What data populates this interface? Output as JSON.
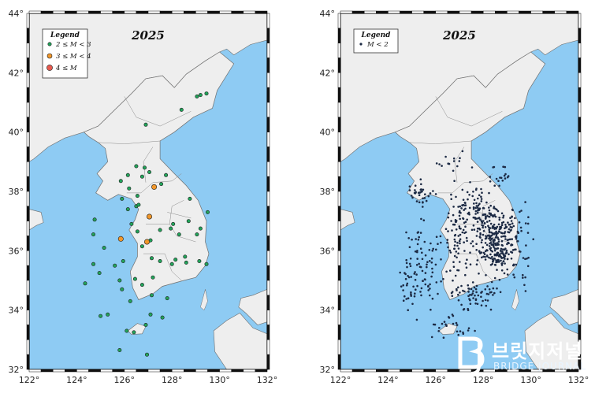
{
  "colors": {
    "sea": "#8ecbf3",
    "land": "#eeeeee",
    "border": "#8a8a8a",
    "minor": "#22a35a",
    "moderate": "#f0962a",
    "strong": "#e65a4f",
    "micro": "#1c2a44"
  },
  "axes": {
    "x_ticks": [
      "122°",
      "124°",
      "126°",
      "128°",
      "130°",
      "132°"
    ],
    "y_ticks": [
      "32°",
      "34°",
      "36°",
      "38°",
      "40°",
      "42°",
      "44°"
    ]
  },
  "maps": [
    {
      "title": "2025",
      "legend": {
        "title": "Legend",
        "entries": [
          {
            "label": "2 ≤ M < 3",
            "color": "minor",
            "symbol": "small-circle"
          },
          {
            "label": "3 ≤ M < 4",
            "color": "moderate",
            "symbol": "medium-circle"
          },
          {
            "label": "4 ≤ M",
            "color": "strong",
            "symbol": "large-circle"
          }
        ]
      }
    },
    {
      "title": "2025",
      "legend": {
        "title": "Legend",
        "entries": [
          {
            "label": "M < 2",
            "color": "micro",
            "symbol": "dot"
          }
        ]
      }
    }
  ],
  "chart_data": [
    {
      "type": "scatter",
      "title": "2025",
      "xlim": [
        122,
        132
      ],
      "ylim": [
        32,
        44
      ],
      "series": [
        {
          "name": "2 ≤ M < 3",
          "color": "minor",
          "points": [
            [
              129.2,
              41.25
            ],
            [
              129.45,
              41.3
            ],
            [
              129.05,
              41.2
            ],
            [
              128.4,
              40.75
            ],
            [
              126.9,
              40.25
            ],
            [
              126.5,
              38.85
            ],
            [
              126.85,
              38.8
            ],
            [
              127.05,
              38.65
            ],
            [
              126.15,
              38.55
            ],
            [
              126.75,
              38.5
            ],
            [
              127.75,
              38.55
            ],
            [
              125.85,
              38.35
            ],
            [
              126.2,
              38.1
            ],
            [
              126.55,
              37.85
            ],
            [
              125.9,
              37.75
            ],
            [
              126.5,
              37.5
            ],
            [
              126.15,
              37.4
            ],
            [
              126.6,
              37.55
            ],
            [
              127.55,
              38.25
            ],
            [
              128.75,
              37.75
            ],
            [
              129.5,
              37.3
            ],
            [
              128.05,
              36.9
            ],
            [
              128.7,
              37.0
            ],
            [
              129.2,
              36.75
            ],
            [
              129.05,
              36.55
            ],
            [
              127.95,
              36.75
            ],
            [
              127.5,
              36.7
            ],
            [
              126.55,
              36.65
            ],
            [
              127.1,
              36.35
            ],
            [
              126.3,
              36.9
            ],
            [
              126.75,
              36.15
            ],
            [
              124.75,
              37.05
            ],
            [
              124.7,
              36.55
            ],
            [
              125.15,
              36.1
            ],
            [
              125.95,
              35.65
            ],
            [
              127.15,
              35.75
            ],
            [
              127.5,
              35.65
            ],
            [
              128.0,
              35.55
            ],
            [
              128.15,
              35.7
            ],
            [
              128.6,
              35.6
            ],
            [
              129.15,
              35.65
            ],
            [
              129.45,
              35.55
            ],
            [
              128.55,
              35.8
            ],
            [
              127.2,
              35.1
            ],
            [
              126.45,
              35.05
            ],
            [
              124.7,
              35.55
            ],
            [
              124.95,
              35.25
            ],
            [
              125.6,
              35.5
            ],
            [
              125.8,
              35.0
            ],
            [
              125.9,
              34.7
            ],
            [
              126.75,
              34.85
            ],
            [
              127.15,
              34.5
            ],
            [
              125.3,
              33.85
            ],
            [
              125.0,
              33.8
            ],
            [
              126.1,
              33.3
            ],
            [
              126.4,
              33.25
            ],
            [
              126.9,
              33.5
            ],
            [
              127.1,
              33.85
            ],
            [
              127.6,
              33.75
            ],
            [
              126.95,
              32.5
            ],
            [
              125.8,
              32.65
            ],
            [
              126.25,
              34.3
            ],
            [
              127.8,
              34.4
            ],
            [
              124.35,
              34.9
            ],
            [
              128.3,
              36.55
            ]
          ]
        },
        {
          "name": "3 ≤ M < 4",
          "color": "moderate",
          "points": [
            [
              127.25,
              38.15
            ],
            [
              125.85,
              36.4
            ],
            [
              127.05,
              37.15
            ],
            [
              126.95,
              36.3
            ]
          ]
        }
      ]
    },
    {
      "type": "scatter",
      "title": "2025",
      "xlim": [
        122,
        132
      ],
      "ylim": [
        32,
        44
      ],
      "series": [
        {
          "name": "M < 2",
          "color": "micro",
          "density": [
            {
              "center": [
                128.4,
                36.4
              ],
              "spread": [
                0.75,
                0.85
              ],
              "count": 230
            },
            {
              "center": [
                128.7,
                35.8
              ],
              "spread": [
                0.45,
                0.35
              ],
              "count": 60
            },
            {
              "center": [
                127.6,
                37.4
              ],
              "spread": [
                0.8,
                0.7
              ],
              "count": 90
            },
            {
              "center": [
                126.9,
                36.2
              ],
              "spread": [
                0.4,
                0.9
              ],
              "count": 60
            },
            {
              "center": [
                125.6,
                35.7
              ],
              "spread": [
                0.7,
                1.2
              ],
              "count": 75
            },
            {
              "center": [
                125.3,
                37.9
              ],
              "spread": [
                0.6,
                0.35
              ],
              "count": 35
            },
            {
              "center": [
                127.6,
                34.5
              ],
              "spread": [
                1.0,
                0.45
              ],
              "count": 65
            },
            {
              "center": [
                126.6,
                33.4
              ],
              "spread": [
                0.8,
                0.35
              ],
              "count": 25
            },
            {
              "center": [
                129.5,
                36.3
              ],
              "spread": [
                0.45,
                1.0
              ],
              "count": 50
            },
            {
              "center": [
                128.6,
                38.5
              ],
              "spread": [
                0.5,
                0.3
              ],
              "count": 18
            },
            {
              "center": [
                126.8,
                39.0
              ],
              "spread": [
                0.7,
                0.25
              ],
              "count": 14
            },
            {
              "center": [
                124.9,
                34.8
              ],
              "spread": [
                0.5,
                0.8
              ],
              "count": 30
            }
          ]
        }
      ]
    }
  ],
  "watermark": {
    "main": "브릿지저널",
    "sub": "BRIDGE JOURNAL"
  }
}
